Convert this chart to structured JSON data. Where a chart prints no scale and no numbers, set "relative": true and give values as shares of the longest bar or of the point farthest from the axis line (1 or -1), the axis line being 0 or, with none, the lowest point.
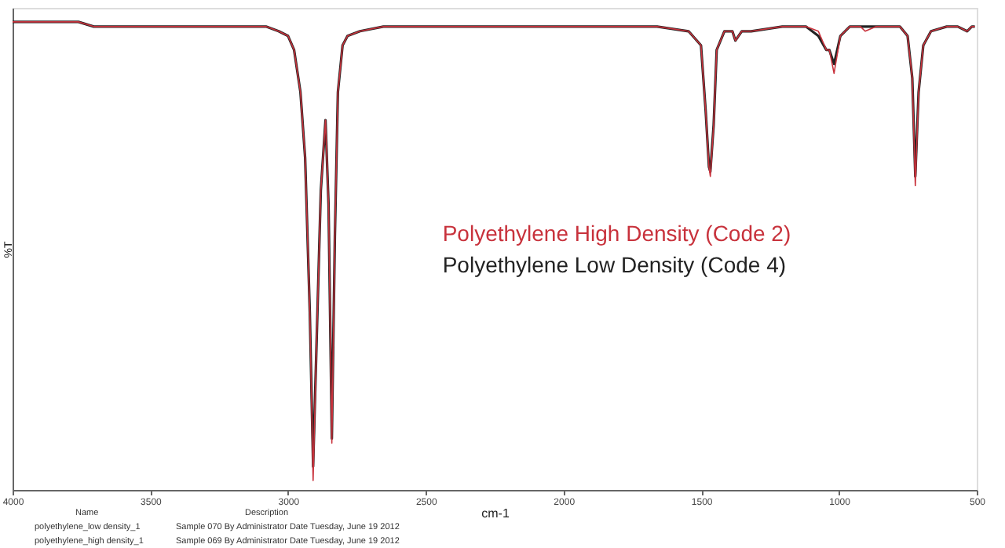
{
  "chart_data": {
    "type": "line",
    "relative": true,
    "xlabel": "cm-1",
    "ylabel": "%T",
    "xlim": [
      4000,
      500
    ],
    "xticks": [
      4000,
      3500,
      3000,
      2500,
      2000,
      1500,
      1000,
      500
    ],
    "x": [
      4000,
      3761,
      3705,
      3648,
      3477,
      3193,
      3080,
      3034,
      3000,
      2978,
      2955,
      2938,
      2921,
      2909,
      2898,
      2881,
      2864,
      2853,
      2841,
      2830,
      2819,
      2802,
      2784,
      2739,
      2654,
      2341,
      1887,
      1660,
      1546,
      1501,
      1484,
      1472,
      1467,
      1455,
      1444,
      1416,
      1387,
      1376,
      1353,
      1319,
      1206,
      1120,
      1075,
      1046,
      1035,
      1018,
      995,
      961,
      922,
      905,
      865,
      779,
      751,
      734,
      723,
      711,
      694,
      666,
      609,
      569,
      535,
      518,
      507
    ],
    "series": [
      {
        "name": "Polyethylene High Density (Code 2)",
        "color": "#c8323c",
        "values": [
          1.0,
          1.0,
          0.99,
          0.99,
          0.99,
          0.99,
          0.99,
          0.98,
          0.97,
          0.94,
          0.85,
          0.71,
          0.38,
          0.02,
          0.28,
          0.64,
          0.79,
          0.61,
          0.1,
          0.54,
          0.85,
          0.95,
          0.97,
          0.98,
          0.99,
          0.99,
          0.99,
          0.99,
          0.98,
          0.95,
          0.81,
          0.69,
          0.67,
          0.78,
          0.94,
          0.98,
          0.98,
          0.96,
          0.98,
          0.98,
          0.99,
          0.99,
          0.98,
          0.94,
          0.94,
          0.89,
          0.97,
          0.99,
          0.99,
          0.98,
          0.99,
          0.99,
          0.97,
          0.88,
          0.65,
          0.85,
          0.95,
          0.98,
          0.99,
          0.99,
          0.98,
          0.99,
          0.99
        ]
      },
      {
        "name": "Polyethylene Low Density (Code 4)",
        "color": "#222222",
        "values": [
          1.0,
          1.0,
          0.99,
          0.99,
          0.99,
          0.99,
          0.99,
          0.98,
          0.97,
          0.94,
          0.85,
          0.71,
          0.38,
          0.05,
          0.28,
          0.64,
          0.79,
          0.61,
          0.11,
          0.54,
          0.85,
          0.95,
          0.97,
          0.98,
          0.99,
          0.99,
          0.99,
          0.99,
          0.98,
          0.95,
          0.81,
          0.69,
          0.68,
          0.78,
          0.94,
          0.98,
          0.98,
          0.96,
          0.98,
          0.98,
          0.99,
          0.99,
          0.97,
          0.94,
          0.94,
          0.91,
          0.97,
          0.99,
          0.99,
          0.99,
          0.99,
          0.99,
          0.97,
          0.88,
          0.67,
          0.85,
          0.95,
          0.98,
          0.99,
          0.99,
          0.98,
          0.99,
          0.99
        ]
      }
    ],
    "legend": "center",
    "grid": false,
    "line_style": "solid",
    "marker": "none",
    "annotations": [
      "Name",
      "Description",
      "polyethylene_low density_1",
      "Sample 070 By Administrator Date Tuesday, June 19 2012",
      "polyethylene_high density_1",
      "Sample 069 By Administrator Date Tuesday, June 19 2012"
    ]
  }
}
